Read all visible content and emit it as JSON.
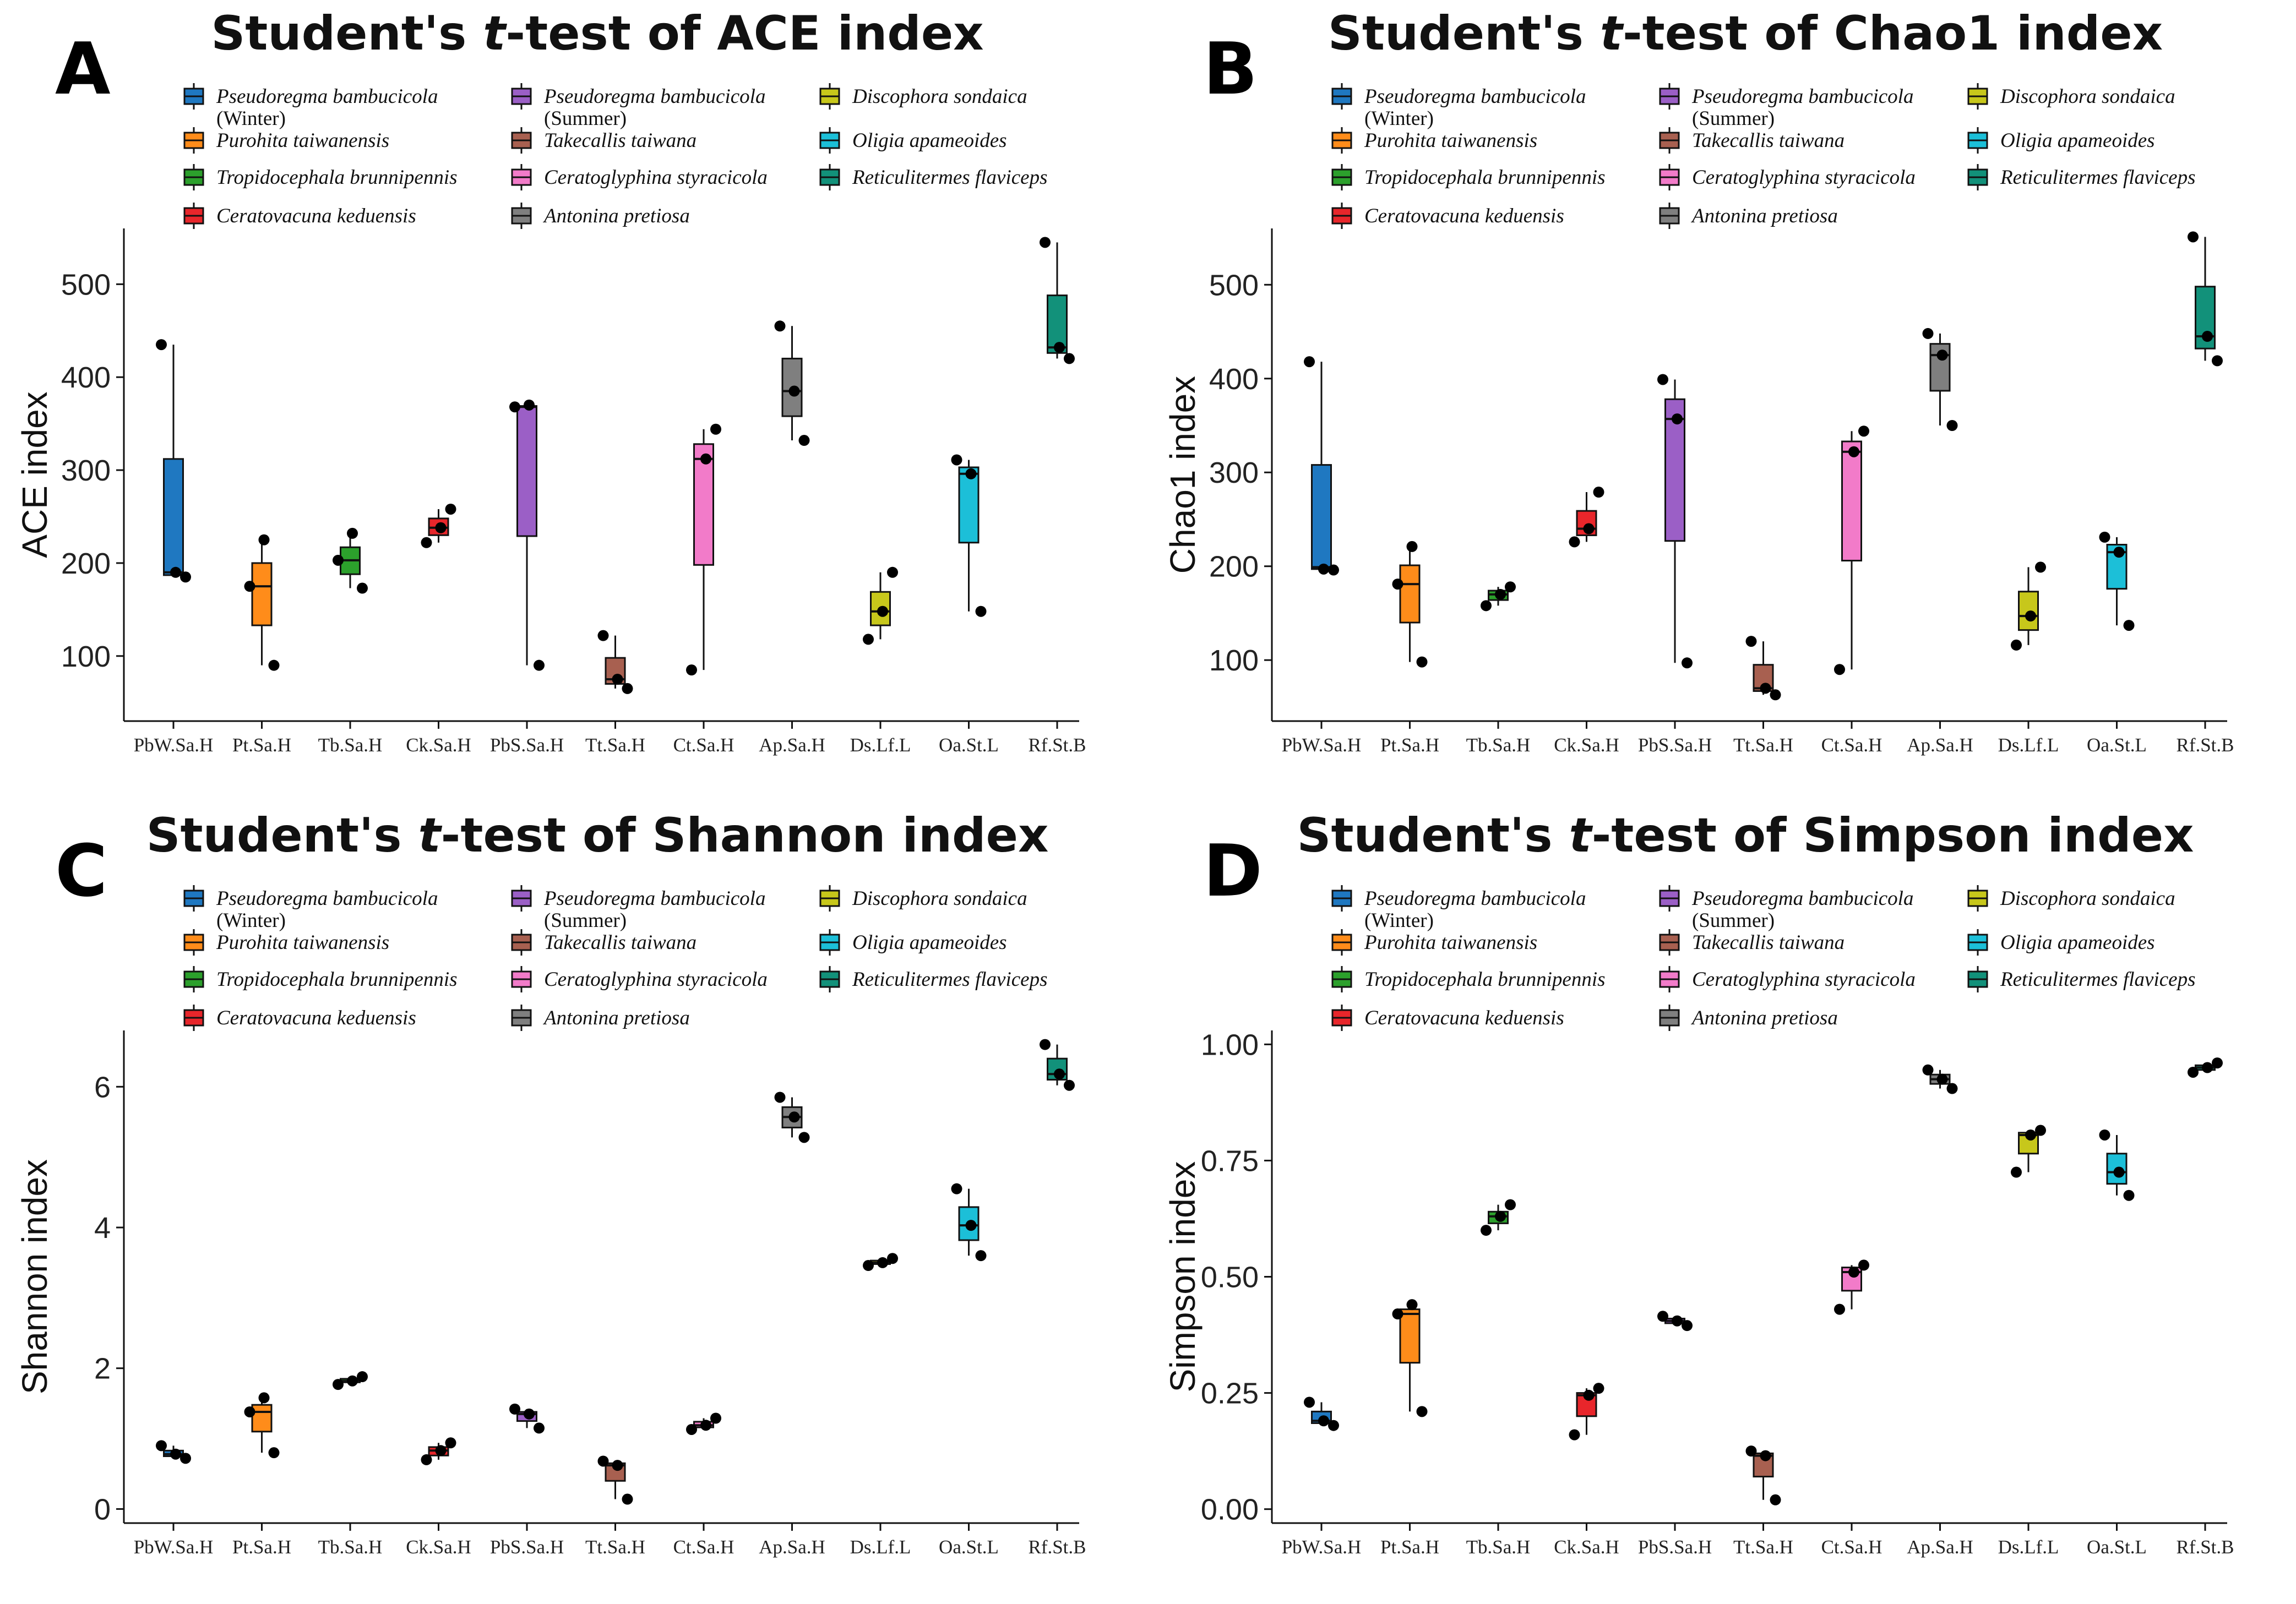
{
  "figure": {
    "palette": {
      "PbW": "#1f78c1",
      "Pt": "#ff8c1a",
      "Tb": "#2ca02c",
      "Ck": "#e8262b",
      "PbS": "#9b5fc6",
      "Tt": "#a86050",
      "Ct": "#f27bc9",
      "Ap": "#7f7f7f",
      "Ds": "#c7c71b",
      "Oa": "#1cbfd8",
      "Rf": "#12917a"
    },
    "legend": [
      {
        "key": "PbW",
        "label": "Pseudoregma bambucicola",
        "sub": "(Winter)"
      },
      {
        "key": "Pt",
        "label": "Purohita taiwanensis",
        "sub": ""
      },
      {
        "key": "Tb",
        "label": "Tropidocephala brunnipennis",
        "sub": ""
      },
      {
        "key": "Ck",
        "label": "Ceratovacuna keduensis",
        "sub": ""
      },
      {
        "key": "PbS",
        "label": "Pseudoregma bambucicola",
        "sub": "(Summer)"
      },
      {
        "key": "Tt",
        "label": "Takecallis taiwana",
        "sub": ""
      },
      {
        "key": "Ct",
        "label": "Ceratoglyphina styracicola",
        "sub": ""
      },
      {
        "key": "Ap",
        "label": "Antonina pretiosa",
        "sub": ""
      },
      {
        "key": "Ds",
        "label": "Discophora sondaica",
        "sub": ""
      },
      {
        "key": "Oa",
        "label": "Oligia apameoides",
        "sub": ""
      },
      {
        "key": "Rf",
        "label": "Reticulitermes flaviceps",
        "sub": ""
      }
    ]
  },
  "chart_data": [
    {
      "panel": "A",
      "type": "box",
      "title_prefix": "Student's ",
      "title_t": "t",
      "title_suffix": "-test of ACE index",
      "ylabel": "ACE index",
      "ylim": [
        30,
        560
      ],
      "yticks": [
        "100",
        "200",
        "300",
        "400",
        "500"
      ],
      "categories": [
        "PbW.Sa.H",
        "Pt.Sa.H",
        "Tb.Sa.H",
        "Ck.Sa.H",
        "PbS.Sa.H",
        "Tt.Sa.H",
        "Ct.Sa.H",
        "Ap.Sa.H",
        "Ds.Lf.L",
        "Oa.St.L",
        "Rf.St.B"
      ],
      "series": [
        {
          "key": "PbW",
          "min": 185,
          "q1": 187,
          "med": 190,
          "q3": 312,
          "max": 435,
          "points": [
            435,
            190,
            185
          ]
        },
        {
          "key": "Pt",
          "min": 90,
          "q1": 133,
          "med": 175,
          "q3": 200,
          "max": 225,
          "points": [
            175,
            225,
            90
          ]
        },
        {
          "key": "Tb",
          "min": 173,
          "q1": 188,
          "med": 203,
          "q3": 217,
          "max": 232,
          "points": [
            203,
            232,
            173
          ]
        },
        {
          "key": "Ck",
          "min": 222,
          "q1": 230,
          "med": 238,
          "q3": 248,
          "max": 258,
          "points": [
            222,
            238,
            258
          ]
        },
        {
          "key": "PbS",
          "min": 90,
          "q1": 229,
          "med": 368,
          "q3": 369,
          "max": 370,
          "points": [
            368,
            370,
            90
          ]
        },
        {
          "key": "Tt",
          "min": 65,
          "q1": 70,
          "med": 75,
          "q3": 98,
          "max": 122,
          "points": [
            122,
            75,
            65
          ]
        },
        {
          "key": "Ct",
          "min": 85,
          "q1": 198,
          "med": 312,
          "q3": 328,
          "max": 344,
          "points": [
            85,
            312,
            344
          ]
        },
        {
          "key": "Ap",
          "min": 332,
          "q1": 358,
          "med": 385,
          "q3": 420,
          "max": 455,
          "points": [
            455,
            385,
            332
          ]
        },
        {
          "key": "Ds",
          "min": 118,
          "q1": 133,
          "med": 148,
          "q3": 169,
          "max": 190,
          "points": [
            118,
            148,
            190
          ]
        },
        {
          "key": "Oa",
          "min": 148,
          "q1": 222,
          "med": 296,
          "q3": 303,
          "max": 311,
          "points": [
            311,
            296,
            148
          ]
        },
        {
          "key": "Rf",
          "min": 420,
          "q1": 426,
          "med": 432,
          "q3": 488,
          "max": 545,
          "points": [
            545,
            432,
            420
          ]
        }
      ]
    },
    {
      "panel": "B",
      "type": "box",
      "title_prefix": "Student's ",
      "title_t": "t",
      "title_suffix": "-test of Chao1 index",
      "ylabel": "Chao1 index",
      "ylim": [
        35,
        560
      ],
      "yticks": [
        "100",
        "200",
        "300",
        "400",
        "500"
      ],
      "categories": [
        "PbW.Sa.H",
        "Pt.Sa.H",
        "Tb.Sa.H",
        "Ck.Sa.H",
        "PbS.Sa.H",
        "Tt.Sa.H",
        "Ct.Sa.H",
        "Ap.Sa.H",
        "Ds.Lf.L",
        "Oa.St.L",
        "Rf.St.B"
      ],
      "series": [
        {
          "key": "PbW",
          "min": 196,
          "q1": 197,
          "med": 199,
          "q3": 308,
          "max": 418,
          "points": [
            418,
            197,
            196
          ]
        },
        {
          "key": "Pt",
          "min": 98,
          "q1": 140,
          "med": 181,
          "q3": 201,
          "max": 221,
          "points": [
            181,
            221,
            98
          ]
        },
        {
          "key": "Tb",
          "min": 158,
          "q1": 164,
          "med": 170,
          "q3": 174,
          "max": 178,
          "points": [
            158,
            170,
            178
          ]
        },
        {
          "key": "Ck",
          "min": 226,
          "q1": 233,
          "med": 240,
          "q3": 259,
          "max": 279,
          "points": [
            226,
            240,
            279
          ]
        },
        {
          "key": "PbS",
          "min": 97,
          "q1": 227,
          "med": 357,
          "q3": 378,
          "max": 399,
          "points": [
            399,
            357,
            97
          ]
        },
        {
          "key": "Tt",
          "min": 63,
          "q1": 67,
          "med": 70,
          "q3": 95,
          "max": 120,
          "points": [
            120,
            70,
            63
          ]
        },
        {
          "key": "Ct",
          "min": 90,
          "q1": 206,
          "med": 322,
          "q3": 333,
          "max": 344,
          "points": [
            90,
            322,
            344
          ]
        },
        {
          "key": "Ap",
          "min": 350,
          "q1": 387,
          "med": 425,
          "q3": 437,
          "max": 448,
          "points": [
            448,
            425,
            350
          ]
        },
        {
          "key": "Ds",
          "min": 116,
          "q1": 132,
          "med": 147,
          "q3": 173,
          "max": 199,
          "points": [
            116,
            147,
            199
          ]
        },
        {
          "key": "Oa",
          "min": 137,
          "q1": 176,
          "med": 215,
          "q3": 223,
          "max": 231,
          "points": [
            231,
            215,
            137
          ]
        },
        {
          "key": "Rf",
          "min": 419,
          "q1": 432,
          "med": 445,
          "q3": 498,
          "max": 551,
          "points": [
            551,
            445,
            419
          ]
        }
      ]
    },
    {
      "panel": "C",
      "type": "box",
      "title_prefix": "Student's ",
      "title_t": "t",
      "title_suffix": "-test of Shannon index",
      "ylabel": "Shannon index",
      "ylim": [
        -0.2,
        6.8
      ],
      "yticks": [
        "0",
        "2",
        "4",
        "6"
      ],
      "categories": [
        "PbW.Sa.H",
        "Pt.Sa.H",
        "Tb.Sa.H",
        "Ck.Sa.H",
        "PbS.Sa.H",
        "Tt.Sa.H",
        "Ct.Sa.H",
        "Ap.Sa.H",
        "Ds.Lf.L",
        "Oa.St.L",
        "Rf.St.B"
      ],
      "series": [
        {
          "key": "PbW",
          "min": 0.72,
          "q1": 0.75,
          "med": 0.78,
          "q3": 0.83,
          "max": 0.9,
          "points": [
            0.9,
            0.78,
            0.72
          ]
        },
        {
          "key": "Pt",
          "min": 0.8,
          "q1": 1.1,
          "med": 1.38,
          "q3": 1.48,
          "max": 1.58,
          "points": [
            1.38,
            1.58,
            0.8
          ]
        },
        {
          "key": "Tb",
          "min": 1.77,
          "q1": 1.8,
          "med": 1.82,
          "q3": 1.85,
          "max": 1.88,
          "points": [
            1.77,
            1.82,
            1.88
          ]
        },
        {
          "key": "Ck",
          "min": 0.7,
          "q1": 0.76,
          "med": 0.83,
          "q3": 0.88,
          "max": 0.94,
          "points": [
            0.7,
            0.83,
            0.94
          ]
        },
        {
          "key": "PbS",
          "min": 1.15,
          "q1": 1.25,
          "med": 1.35,
          "q3": 1.38,
          "max": 1.42,
          "points": [
            1.42,
            1.35,
            1.15
          ]
        },
        {
          "key": "Tt",
          "min": 0.14,
          "q1": 0.4,
          "med": 0.62,
          "q3": 0.65,
          "max": 0.68,
          "points": [
            0.68,
            0.62,
            0.14
          ]
        },
        {
          "key": "Ct",
          "min": 1.13,
          "q1": 1.16,
          "med": 1.19,
          "q3": 1.24,
          "max": 1.29,
          "points": [
            1.13,
            1.19,
            1.29
          ]
        },
        {
          "key": "Ap",
          "min": 5.28,
          "q1": 5.42,
          "med": 5.57,
          "q3": 5.71,
          "max": 5.85,
          "points": [
            5.85,
            5.57,
            5.28
          ]
        },
        {
          "key": "Ds",
          "min": 3.46,
          "q1": 3.48,
          "med": 3.5,
          "q3": 3.53,
          "max": 3.56,
          "points": [
            3.46,
            3.5,
            3.56
          ]
        },
        {
          "key": "Oa",
          "min": 3.6,
          "q1": 3.82,
          "med": 4.03,
          "q3": 4.29,
          "max": 4.55,
          "points": [
            4.55,
            4.03,
            3.6
          ]
        },
        {
          "key": "Rf",
          "min": 6.02,
          "q1": 6.1,
          "med": 6.18,
          "q3": 6.4,
          "max": 6.6,
          "points": [
            6.6,
            6.18,
            6.02
          ]
        }
      ]
    },
    {
      "panel": "D",
      "type": "box",
      "title_prefix": "Student's ",
      "title_t": "t",
      "title_suffix": "-test of Simpson index",
      "ylabel": "Simpson index",
      "ylim": [
        -0.03,
        1.03
      ],
      "yticks": [
        "0.00",
        "0.25",
        "0.50",
        "0.75",
        "1.00"
      ],
      "categories": [
        "PbW.Sa.H",
        "Pt.Sa.H",
        "Tb.Sa.H",
        "Ck.Sa.H",
        "PbS.Sa.H",
        "Tt.Sa.H",
        "Ct.Sa.H",
        "Ap.Sa.H",
        "Ds.Lf.L",
        "Oa.St.L",
        "Rf.St.B"
      ],
      "series": [
        {
          "key": "PbW",
          "min": 0.18,
          "q1": 0.185,
          "med": 0.19,
          "q3": 0.21,
          "max": 0.23,
          "points": [
            0.23,
            0.19,
            0.18
          ]
        },
        {
          "key": "Pt",
          "min": 0.21,
          "q1": 0.315,
          "med": 0.42,
          "q3": 0.43,
          "max": 0.44,
          "points": [
            0.42,
            0.44,
            0.21
          ]
        },
        {
          "key": "Tb",
          "min": 0.6,
          "q1": 0.615,
          "med": 0.63,
          "q3": 0.64,
          "max": 0.655,
          "points": [
            0.6,
            0.63,
            0.655
          ]
        },
        {
          "key": "Ck",
          "min": 0.16,
          "q1": 0.2,
          "med": 0.245,
          "q3": 0.25,
          "max": 0.26,
          "points": [
            0.16,
            0.245,
            0.26
          ]
        },
        {
          "key": "PbS",
          "min": 0.395,
          "q1": 0.4,
          "med": 0.405,
          "q3": 0.41,
          "max": 0.415,
          "points": [
            0.415,
            0.405,
            0.395
          ]
        },
        {
          "key": "Tt",
          "min": 0.02,
          "q1": 0.07,
          "med": 0.115,
          "q3": 0.12,
          "max": 0.125,
          "points": [
            0.125,
            0.115,
            0.02
          ]
        },
        {
          "key": "Ct",
          "min": 0.43,
          "q1": 0.47,
          "med": 0.51,
          "q3": 0.52,
          "max": 0.525,
          "points": [
            0.43,
            0.51,
            0.525
          ]
        },
        {
          "key": "Ap",
          "min": 0.905,
          "q1": 0.915,
          "med": 0.925,
          "q3": 0.935,
          "max": 0.945,
          "points": [
            0.945,
            0.925,
            0.905
          ]
        },
        {
          "key": "Ds",
          "min": 0.725,
          "q1": 0.765,
          "med": 0.805,
          "q3": 0.81,
          "max": 0.815,
          "points": [
            0.725,
            0.805,
            0.815
          ]
        },
        {
          "key": "Oa",
          "min": 0.675,
          "q1": 0.7,
          "med": 0.725,
          "q3": 0.765,
          "max": 0.805,
          "points": [
            0.805,
            0.725,
            0.675
          ]
        },
        {
          "key": "Rf",
          "min": 0.94,
          "q1": 0.945,
          "med": 0.95,
          "q3": 0.955,
          "max": 0.96,
          "points": [
            0.94,
            0.95,
            0.96
          ]
        }
      ]
    }
  ]
}
